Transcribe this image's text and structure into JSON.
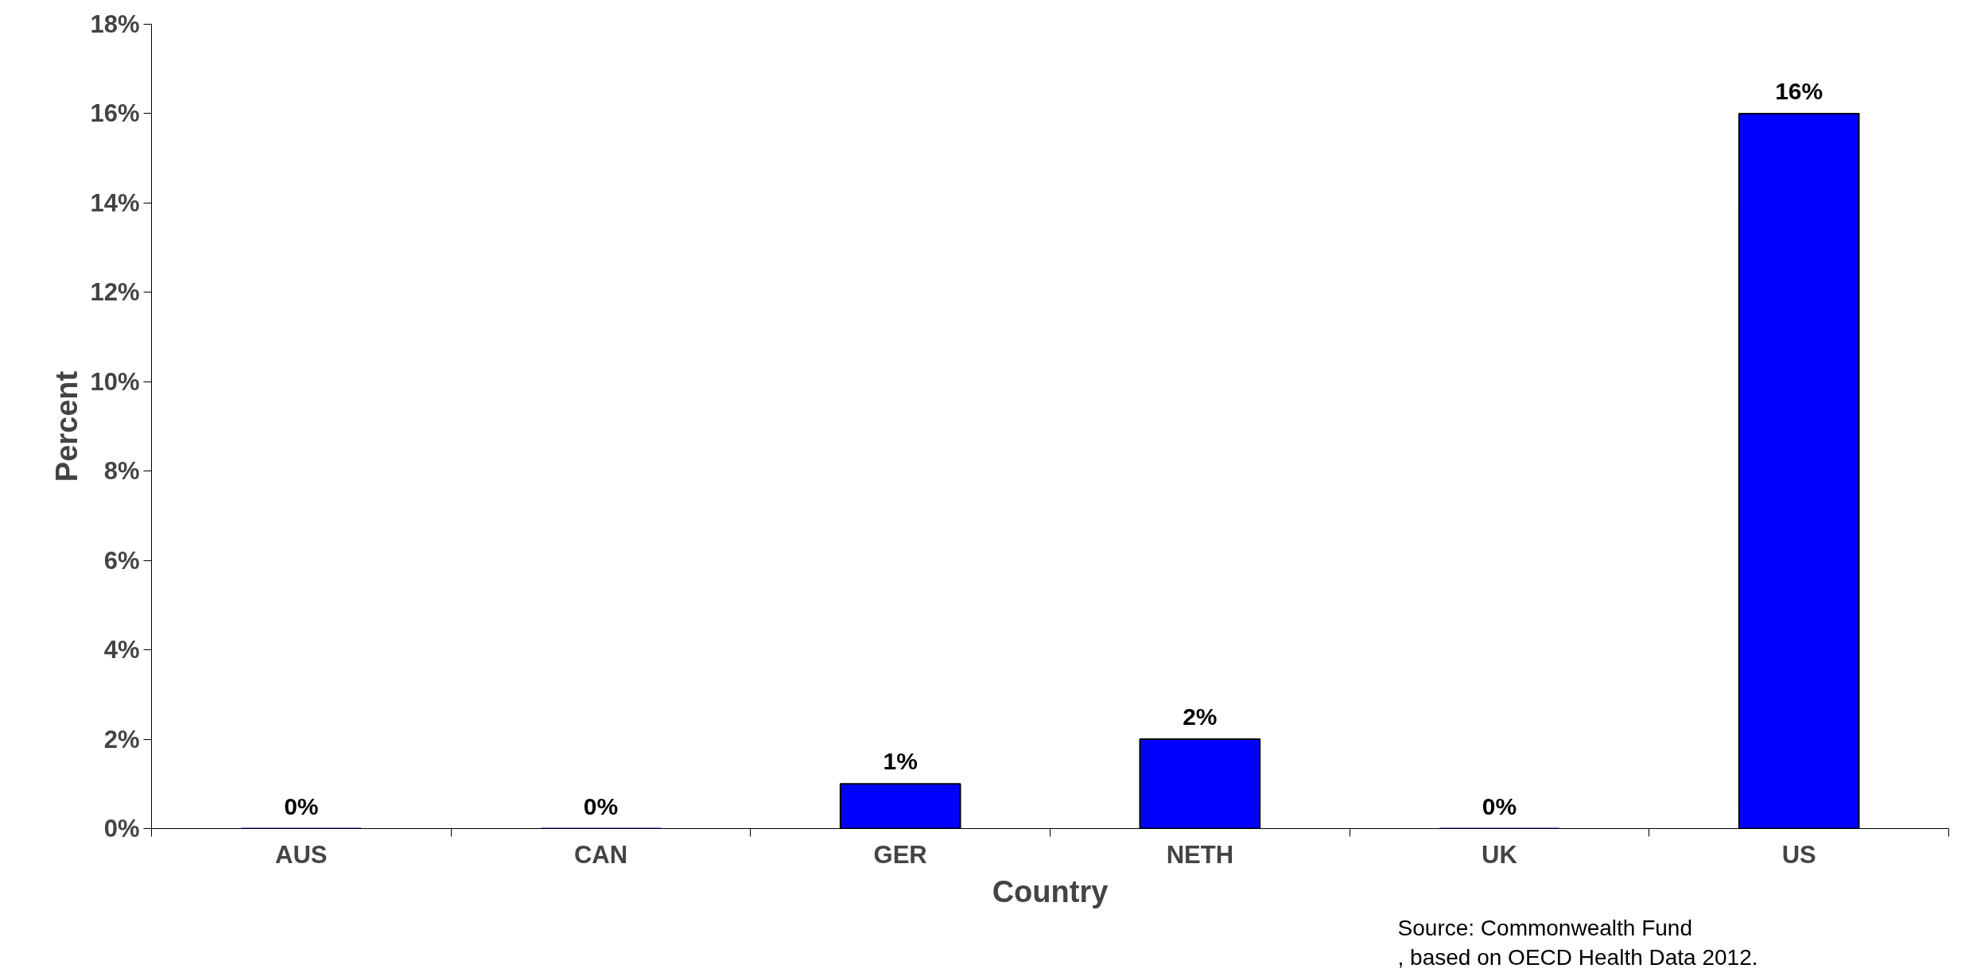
{
  "chart_data": {
    "type": "bar",
    "xlabel": "Country",
    "ylabel": "Percent",
    "categories": [
      "AUS",
      "CAN",
      "GER",
      "NETH",
      "UK",
      "US"
    ],
    "values": [
      0,
      0,
      1,
      2,
      0,
      16
    ],
    "value_labels": [
      "0%",
      "0%",
      "1%",
      "2%",
      "0%",
      "16%"
    ],
    "color": "#0000ff",
    "ylim": [
      0,
      18
    ],
    "yticks": [
      {
        "value": 0,
        "label": "0%"
      },
      {
        "value": 2,
        "label": "2%"
      },
      {
        "value": 4,
        "label": "4%"
      },
      {
        "value": 6,
        "label": "6%"
      },
      {
        "value": 8,
        "label": "8%"
      },
      {
        "value": 10,
        "label": "10%"
      },
      {
        "value": 12,
        "label": "12%"
      },
      {
        "value": 14,
        "label": "14%"
      },
      {
        "value": 16,
        "label": "16%"
      },
      {
        "value": 18,
        "label": "18%"
      }
    ],
    "grid": false,
    "annotations": [
      "Source: Commonwealth Fund\n, based on OECD Health Data 2012."
    ]
  }
}
